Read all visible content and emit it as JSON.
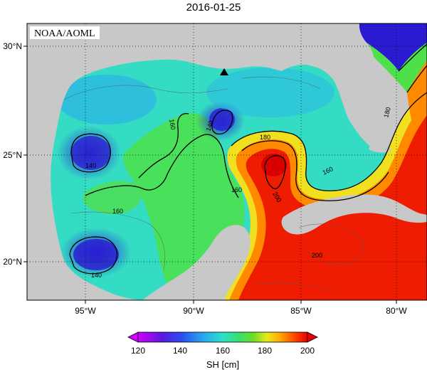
{
  "title": "2016-01-25",
  "credit": "NOAA/AOML",
  "axes": {
    "lat_ticks": [
      "30°N",
      "25°N",
      "20°N"
    ],
    "lon_ticks": [
      "95°W",
      "90°W",
      "85°W",
      "80°W"
    ]
  },
  "colorbar": {
    "label": "SH [cm]",
    "ticks": [
      "120",
      "140",
      "160",
      "180",
      "200"
    ],
    "range": [
      120,
      200
    ],
    "colors": [
      "#c000ff",
      "#3a1fd6",
      "#2c6df2",
      "#2ad8e8",
      "#32e88a",
      "#5edc2a",
      "#ffd700",
      "#ff8a00",
      "#ff2a00",
      "#e60000"
    ]
  },
  "contour_labels": [
    "160",
    "140",
    "140",
    "160",
    "160",
    "180",
    "180",
    "160",
    "200",
    "140",
    "200"
  ],
  "colors": {
    "land": "#c8c8c8",
    "ocean_low": "#2a2ae0",
    "ocean_mid": "#2ee0c0",
    "ocean_high": "#e81a00"
  }
}
